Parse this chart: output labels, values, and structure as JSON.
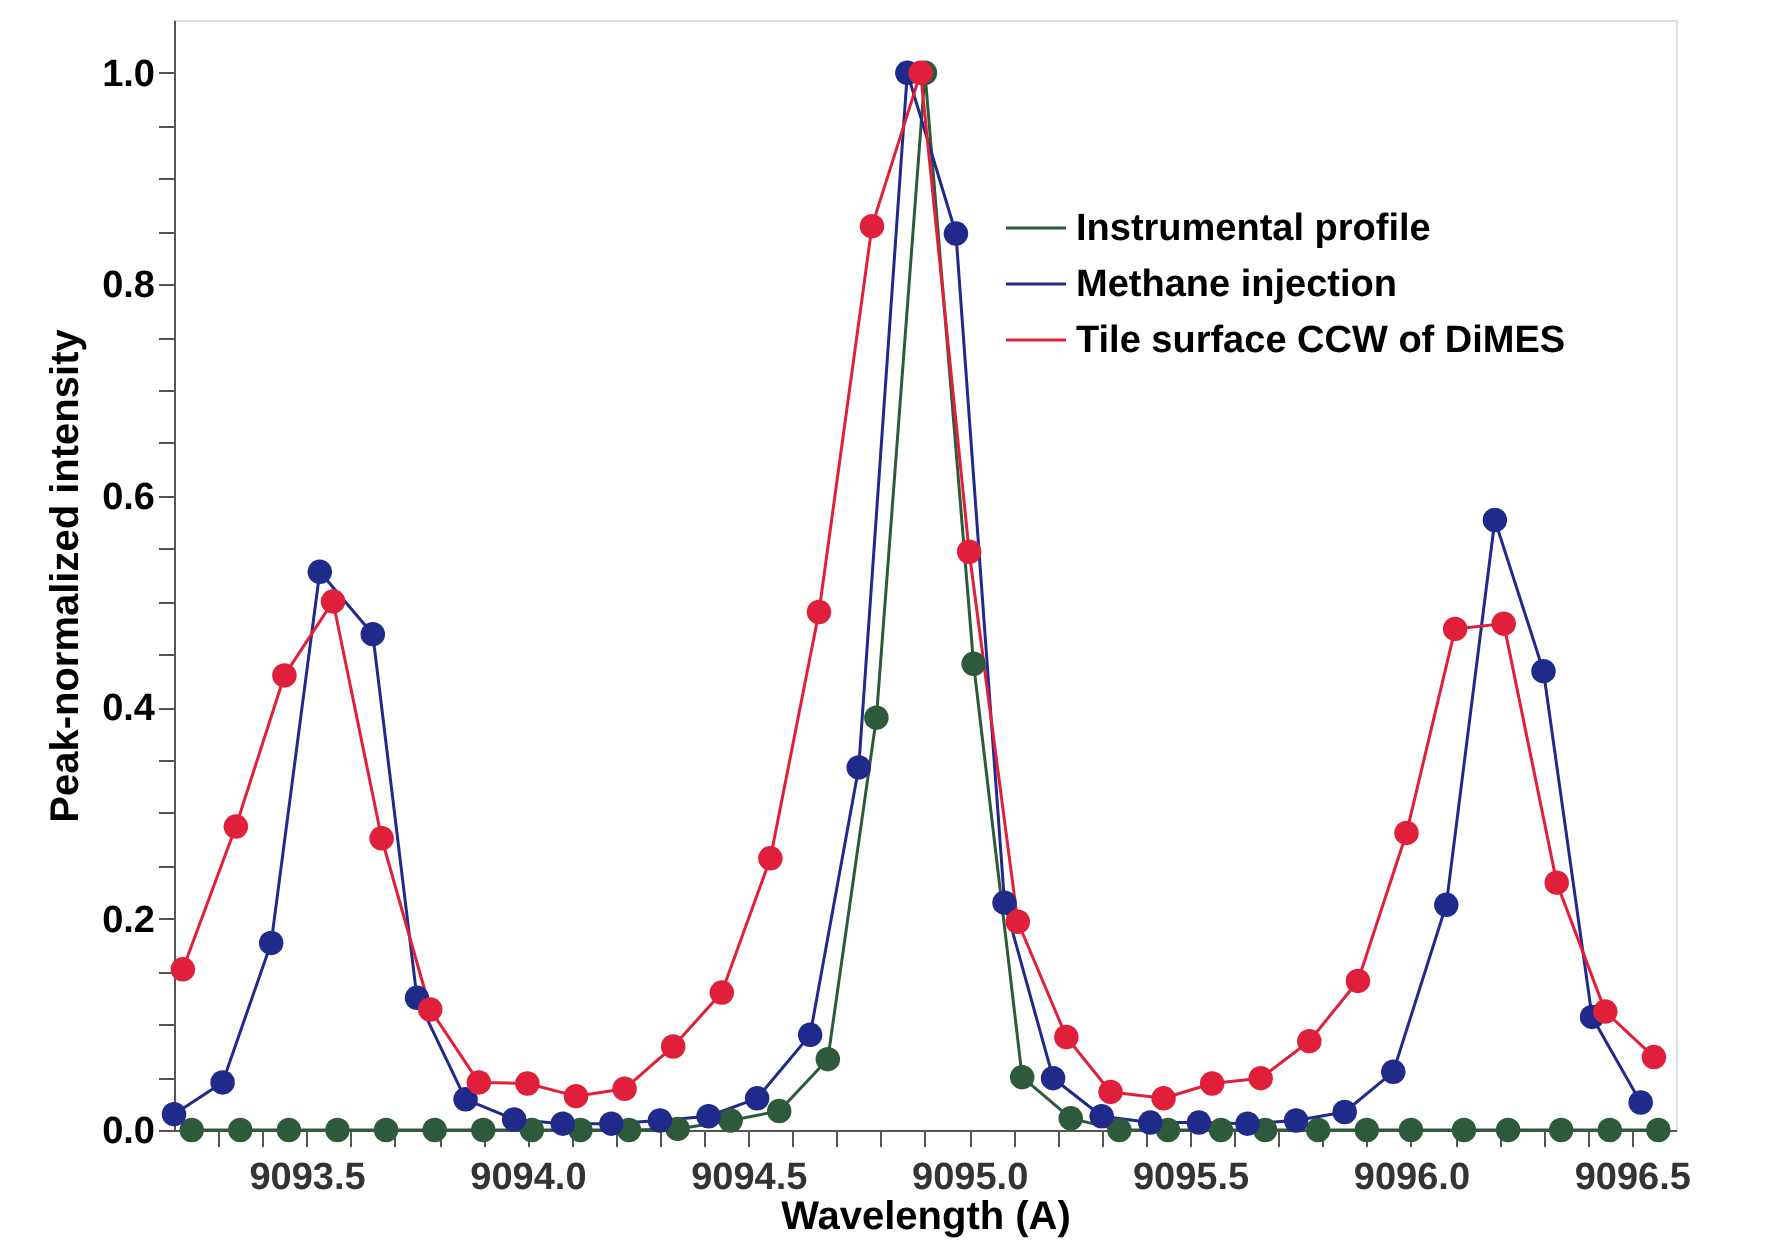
{
  "chart_data": {
    "type": "line",
    "xlabel": "Wavelength (A)",
    "ylabel": "Peak-normalized intensity",
    "xlim": [
      9093.2,
      9096.6
    ],
    "ylim": [
      0,
      1.05
    ],
    "xticks": [
      {
        "value": 9093.3,
        "label": null
      },
      {
        "value": 9093.4,
        "label": null
      },
      {
        "value": 9093.5,
        "label": "9093.5"
      },
      {
        "value": 9093.6,
        "label": null
      },
      {
        "value": 9093.7,
        "label": null
      },
      {
        "value": 9093.8,
        "label": null
      },
      {
        "value": 9093.9,
        "label": null
      },
      {
        "value": 9094.0,
        "label": "9094.0"
      },
      {
        "value": 9094.1,
        "label": null
      },
      {
        "value": 9094.2,
        "label": null
      },
      {
        "value": 9094.3,
        "label": null
      },
      {
        "value": 9094.4,
        "label": null
      },
      {
        "value": 9094.5,
        "label": "9094.5"
      },
      {
        "value": 9094.6,
        "label": null
      },
      {
        "value": 9094.7,
        "label": null
      },
      {
        "value": 9094.8,
        "label": null
      },
      {
        "value": 9094.9,
        "label": null
      },
      {
        "value": 9095.0,
        "label": "9095.0"
      },
      {
        "value": 9095.1,
        "label": null
      },
      {
        "value": 9095.2,
        "label": null
      },
      {
        "value": 9095.3,
        "label": null
      },
      {
        "value": 9095.4,
        "label": null
      },
      {
        "value": 9095.5,
        "label": "9095.5"
      },
      {
        "value": 9095.6,
        "label": null
      },
      {
        "value": 9095.7,
        "label": null
      },
      {
        "value": 9095.8,
        "label": null
      },
      {
        "value": 9095.9,
        "label": null
      },
      {
        "value": 9096.0,
        "label": "9096.0"
      },
      {
        "value": 9096.1,
        "label": null
      },
      {
        "value": 9096.2,
        "label": null
      },
      {
        "value": 9096.3,
        "label": null
      },
      {
        "value": 9096.4,
        "label": null
      },
      {
        "value": 9096.5,
        "label": "9096.5"
      }
    ],
    "yticks": [
      {
        "value": 0,
        "label": "0.0"
      },
      {
        "value": 0.05,
        "label": null
      },
      {
        "value": 0.1,
        "label": null
      },
      {
        "value": 0.15,
        "label": null
      },
      {
        "value": 0.2,
        "label": "0.2"
      },
      {
        "value": 0.25,
        "label": null
      },
      {
        "value": 0.3,
        "label": null
      },
      {
        "value": 0.35,
        "label": null
      },
      {
        "value": 0.4,
        "label": "0.4"
      },
      {
        "value": 0.45,
        "label": null
      },
      {
        "value": 0.5,
        "label": null
      },
      {
        "value": 0.55,
        "label": null
      },
      {
        "value": 0.6,
        "label": "0.6"
      },
      {
        "value": 0.65,
        "label": null
      },
      {
        "value": 0.7,
        "label": null
      },
      {
        "value": 0.75,
        "label": null
      },
      {
        "value": 0.8,
        "label": "0.8"
      },
      {
        "value": 0.85,
        "label": null
      },
      {
        "value": 0.9,
        "label": null
      },
      {
        "value": 0.95,
        "label": null
      },
      {
        "value": 1.0,
        "label": "1.0"
      }
    ],
    "grid": false,
    "legend": "top right",
    "marker": "circle",
    "line_style": "solid",
    "series": [
      {
        "name": "Instrumental profile",
        "color": "#2d5a3a",
        "x": [
          9093.24,
          9093.35,
          9093.46,
          9093.57,
          9093.68,
          9093.79,
          9093.9,
          9094.01,
          9094.12,
          9094.23,
          9094.34,
          9094.46,
          9094.57,
          9094.68,
          9094.79,
          9094.9,
          9095.01,
          9095.12,
          9095.23,
          9095.34,
          9095.45,
          9095.57,
          9095.67,
          9095.79,
          9095.9,
          9096.0,
          9096.12,
          9096.22,
          9096.34,
          9096.45,
          9096.56
        ],
        "values": [
          0,
          0,
          0,
          0,
          0,
          0,
          0,
          0,
          0,
          0,
          0.001,
          0.009,
          0.018,
          0.067,
          0.39,
          1.0,
          0.441,
          0.05,
          0.011,
          0,
          0,
          0,
          0,
          0,
          0,
          0,
          0,
          0,
          0,
          0,
          0
        ]
      },
      {
        "name": "Methane injection",
        "color": "#1f2a8a",
        "x": [
          9093.2,
          9093.31,
          9093.42,
          9093.53,
          9093.65,
          9093.75,
          9093.86,
          9093.97,
          9094.08,
          9094.19,
          9094.3,
          9094.41,
          9094.52,
          9094.64,
          9094.75,
          9094.86,
          9094.97,
          9095.08,
          9095.19,
          9095.3,
          9095.41,
          9095.52,
          9095.63,
          9095.74,
          9095.85,
          9095.96,
          9096.08,
          9096.19,
          9096.3,
          9096.41,
          9096.52
        ],
        "values": [
          0.015,
          0.045,
          0.177,
          0.528,
          0.469,
          0.125,
          0.029,
          0.01,
          0.006,
          0.006,
          0.009,
          0.013,
          0.03,
          0.09,
          0.343,
          1.0,
          0.848,
          0.215,
          0.049,
          0.013,
          0.007,
          0.007,
          0.006,
          0.009,
          0.017,
          0.055,
          0.213,
          0.577,
          0.434,
          0.107,
          0.026
        ]
      },
      {
        "name": "Tile surface CCW of DiMES",
        "color": "#e0203a",
        "x": [
          9093.22,
          9093.34,
          9093.45,
          9093.56,
          9093.67,
          9093.78,
          9093.89,
          9094.0,
          9094.11,
          9094.22,
          9094.33,
          9094.44,
          9094.55,
          9094.66,
          9094.78,
          9094.89,
          9095.0,
          9095.11,
          9095.22,
          9095.32,
          9095.44,
          9095.55,
          9095.66,
          9095.77,
          9095.88,
          9095.99,
          9096.1,
          9096.21,
          9096.33,
          9096.44,
          9096.55
        ],
        "values": [
          0.152,
          0.287,
          0.43,
          0.5,
          0.276,
          0.114,
          0.045,
          0.044,
          0.032,
          0.039,
          0.079,
          0.13,
          0.257,
          0.49,
          0.855,
          1.0,
          0.547,
          0.197,
          0.088,
          0.036,
          0.03,
          0.044,
          0.049,
          0.084,
          0.141,
          0.281,
          0.474,
          0.479,
          0.234,
          0.112,
          0.069
        ]
      }
    ]
  }
}
